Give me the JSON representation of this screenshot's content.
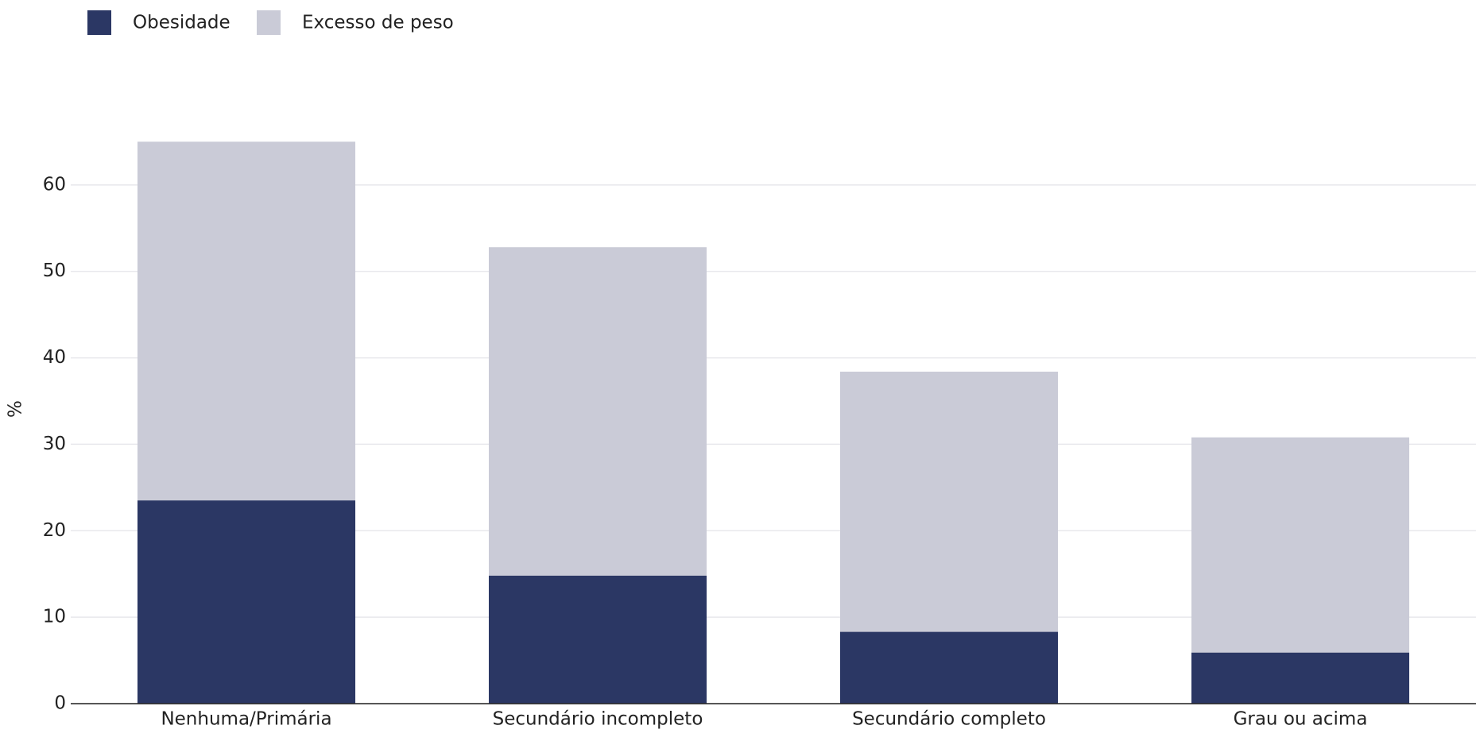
{
  "chart_data": {
    "type": "bar",
    "y_label": "%",
    "categories": [
      "Nenhuma/Primária",
      "Secundário incompleto",
      "Secundário completo",
      "Grau ou acima"
    ],
    "series": [
      {
        "name": "Obesidade",
        "color": "#2b3764",
        "values": [
          23.5,
          14.8,
          8.3,
          5.9
        ]
      },
      {
        "name": "Excesso de peso",
        "color": "#cacbd7",
        "values": [
          65,
          52.8,
          38.4,
          30.8
        ]
      }
    ],
    "ylim": [
      0,
      70
    ],
    "yticks": [
      0,
      10,
      20,
      30,
      40,
      50,
      60
    ],
    "grid": true
  }
}
